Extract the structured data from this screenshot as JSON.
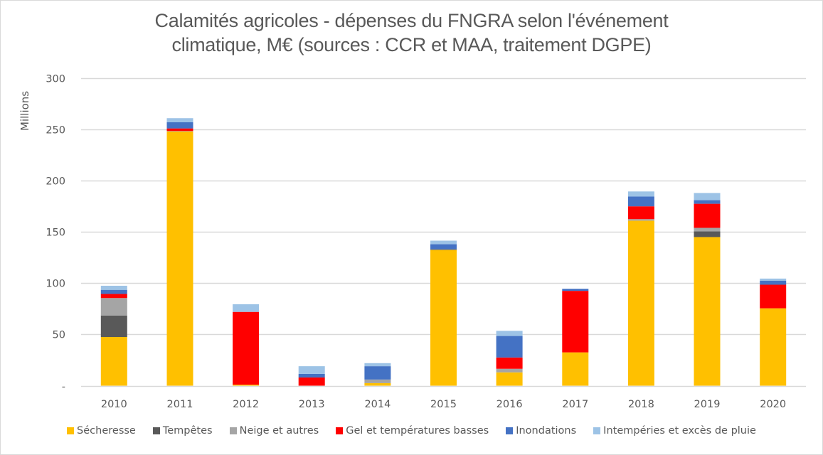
{
  "chart_data": {
    "type": "bar",
    "stacked": true,
    "title_lines": [
      "Calamités agricoles  - dépenses du FNGRA selon l'événement",
      "climatique, M€ (sources : CCR et MAA, traitement DGPE)"
    ],
    "xlabel": "",
    "ylabel": "Millions",
    "ylim": [
      0,
      300
    ],
    "yticks": [
      0,
      50,
      100,
      150,
      200,
      250,
      300
    ],
    "ytick_labels": [
      "-",
      "50",
      "100",
      "150",
      "200",
      "250",
      "300"
    ],
    "grid": true,
    "legend_position": "bottom",
    "categories": [
      "2010",
      "2011",
      "2012",
      "2013",
      "2014",
      "2015",
      "2016",
      "2017",
      "2018",
      "2019",
      "2020"
    ],
    "series": [
      {
        "name": "Sécheresse",
        "color": "#FFC000",
        "values": [
          47.5,
          248,
          1,
          0,
          2.5,
          132.5,
          13,
          32.5,
          161,
          145,
          75.5
        ]
      },
      {
        "name": "Tempêtes",
        "color": "#595959",
        "values": [
          21,
          0,
          0,
          0,
          0,
          0.5,
          0,
          0,
          0,
          5.5,
          0
        ]
      },
      {
        "name": "Neige et autres",
        "color": "#A5A5A5",
        "values": [
          17,
          0.5,
          0,
          0,
          3.5,
          0,
          3.5,
          0,
          1.5,
          3.5,
          0
        ]
      },
      {
        "name": "Gel et températures basses",
        "color": "#FF0000",
        "values": [
          4,
          2.5,
          71,
          8,
          0,
          0,
          11,
          60,
          12.5,
          23.5,
          23
        ]
      },
      {
        "name": "Inondations",
        "color": "#4472C4",
        "values": [
          4,
          6,
          0,
          3.5,
          13,
          5,
          21,
          2,
          9.5,
          3.5,
          4
        ]
      },
      {
        "name": "Intempéries et excès de pluie",
        "color": "#9DC3E6",
        "values": [
          4,
          4,
          7.5,
          7.5,
          3,
          3.5,
          5,
          0,
          5,
          7,
          2
        ]
      }
    ]
  }
}
